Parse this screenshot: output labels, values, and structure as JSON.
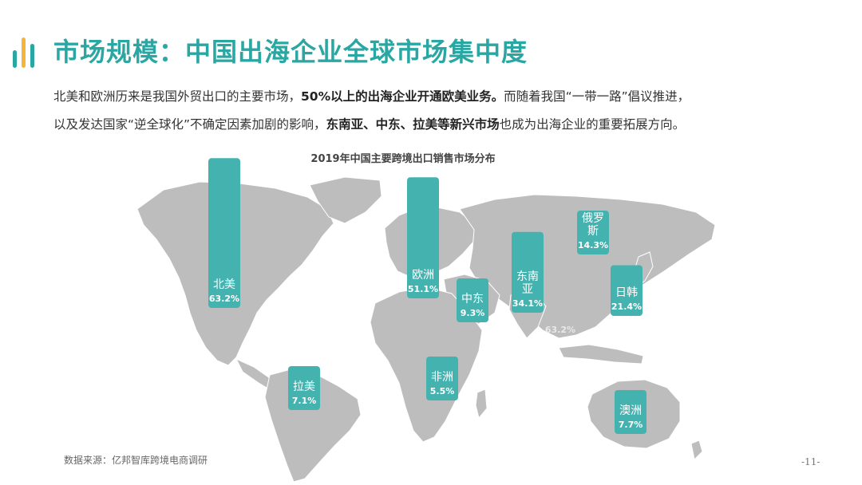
{
  "header": {
    "title": "市场规模：中国出海企业全球市场集中度"
  },
  "intro": {
    "p1_a": "北美和欧洲历来是我国外贸出口的主要市场，",
    "p1_b": "50%以上的出海企业开通欧美业务。",
    "p1_c": "而随着我国“一带一路”倡议推进，",
    "p2_a": "以及发达国家“逆全球化”不确定因素加剧的影响，",
    "p2_b": "东南亚、中东、拉美等新兴市场",
    "p2_c": "也成为出海企业的重要拓展方向。"
  },
  "colors": {
    "accent": "#2aa6a3",
    "bar": "#44b3b0",
    "map_land": "#bdbdbd",
    "logo_bars": [
      "#2aa6a3",
      "#f5b53a",
      "#2aa6a3"
    ]
  },
  "chart_data": {
    "type": "bar",
    "title": "2019年中国主要跨境出口销售市场分布",
    "categories": [
      "北美",
      "欧洲",
      "中东",
      "东南亚",
      "俄罗斯",
      "日韩",
      "拉美",
      "非洲",
      "澳洲"
    ],
    "label_lines": [
      [
        "北美"
      ],
      [
        "欧洲"
      ],
      [
        "中东"
      ],
      [
        "东南",
        "亚"
      ],
      [
        "俄罗",
        "斯"
      ],
      [
        "日韩"
      ],
      [
        "拉美"
      ],
      [
        "非洲"
      ],
      [
        "澳洲"
      ]
    ],
    "values": [
      63.2,
      51.1,
      9.3,
      34.1,
      14.3,
      21.4,
      7.1,
      5.5,
      7.7
    ],
    "value_labels": [
      "63.2%",
      "51.1%",
      "9.3%",
      "34.1%",
      "14.3%",
      "21.4%",
      "7.1%",
      "5.5%",
      "7.7%"
    ],
    "background": "world-map",
    "watermark_value": "63.2%"
  },
  "footer": {
    "source": "数据来源：亿邦智库跨境电商调研",
    "page": "-11-"
  }
}
